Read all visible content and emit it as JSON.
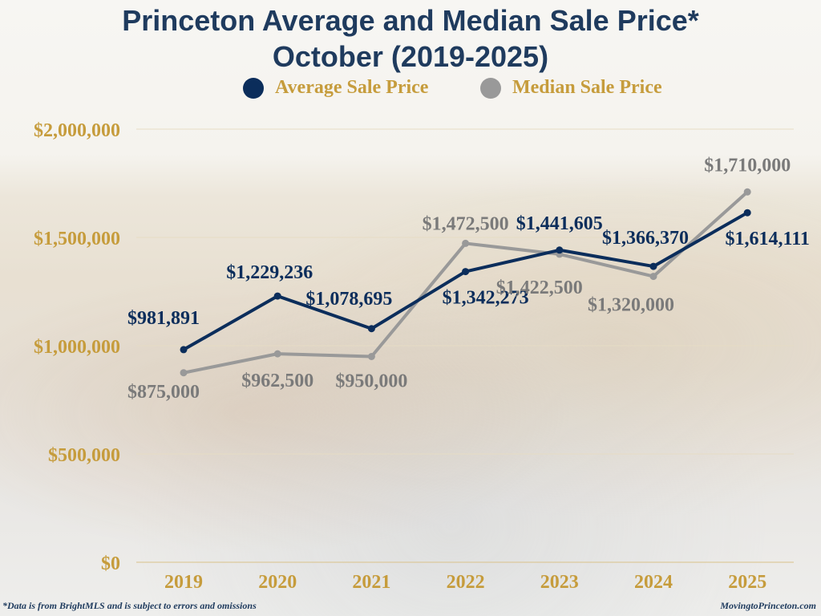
{
  "chart_data": {
    "type": "line",
    "title": "Princeton Average and Median Sale Price*",
    "subtitle": "October (2019-2025)",
    "categories": [
      "2019",
      "2020",
      "2021",
      "2022",
      "2023",
      "2024",
      "2025"
    ],
    "series": [
      {
        "name": "Average Sale Price",
        "color": "#0b2d5b",
        "values": [
          981891,
          1229236,
          1078695,
          1342273,
          1441605,
          1366370,
          1614111
        ],
        "labels": [
          "$981,891",
          "$1,229,236",
          "$1,078,695",
          "$1,342,273",
          "$1,441,605",
          "$1,366,370",
          "$1,614,111"
        ]
      },
      {
        "name": "Median Sale Price",
        "color": "#999999",
        "values": [
          875000,
          962500,
          950000,
          1472500,
          1422500,
          1320000,
          1710000
        ],
        "labels": [
          "$875,000",
          "$962,500",
          "$950,000",
          "$1,472,500",
          "$1,422,500",
          "$1,320,000",
          "$1,710,000"
        ]
      }
    ],
    "yticks": [
      0,
      500000,
      1000000,
      1500000,
      2000000
    ],
    "ytick_labels": [
      "$0",
      "$500,000",
      "$1,000,000",
      "$1,500,000",
      "$2,000,000"
    ],
    "ylim": [
      0,
      2000000
    ],
    "grid": true,
    "legend_position": "top",
    "axis_label_color": "#c69c3c"
  },
  "footer": {
    "note": "*Data is from BrightMLS and is subject to errors and omissions",
    "site": "MovingtoPrinceton.com"
  }
}
